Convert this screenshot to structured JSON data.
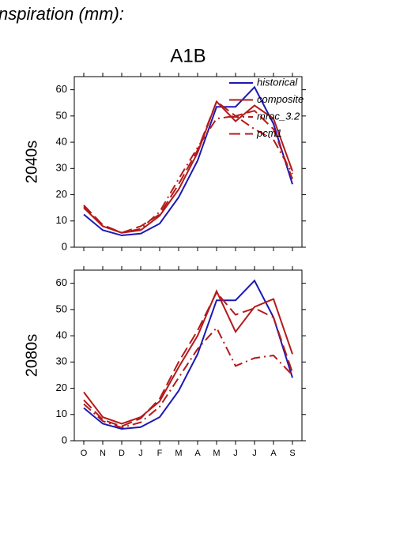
{
  "chart_data": {
    "type": "line",
    "title": "nspiration (mm):",
    "subtitle": "A1B",
    "categories": [
      "O",
      "N",
      "D",
      "J",
      "F",
      "M",
      "A",
      "M",
      "J",
      "J",
      "A",
      "S"
    ],
    "ylim": [
      0,
      65
    ],
    "yticks": [
      0,
      10,
      20,
      30,
      40,
      50,
      60
    ],
    "panels": [
      {
        "ylabel": "2040s"
      },
      {
        "ylabel": "2080s"
      }
    ],
    "legend": "upper right",
    "series": [
      {
        "name": "historical",
        "color": "#1a1ab4",
        "style": "solid",
        "values": [
          [
            12.5,
            6.5,
            4.5,
            5.2,
            9,
            19,
            33,
            53.5,
            53.5,
            61,
            47,
            24
          ],
          [
            12.5,
            6.5,
            4.5,
            5.2,
            9,
            19,
            33,
            53.5,
            53.5,
            61,
            47,
            24
          ]
        ]
      },
      {
        "name": "composite",
        "color": "#b41a1a",
        "style": "solid",
        "values": [
          [
            15,
            8,
            5.5,
            6.5,
            12,
            22,
            36,
            55.5,
            48,
            54,
            49,
            29
          ],
          [
            18.5,
            9,
            6.5,
            9,
            15,
            28,
            40,
            57,
            41.5,
            51,
            54,
            33
          ]
        ]
      },
      {
        "name": "mroc_3.2",
        "color": "#b41a1a",
        "style": "dashdot",
        "values": [
          [
            15.5,
            8,
            5.5,
            7,
            13.5,
            26,
            38,
            49,
            50,
            45,
            41,
            28
          ],
          [
            14,
            7.5,
            5,
            7,
            13,
            24,
            35,
            43,
            28.5,
            31.5,
            32.5,
            25
          ]
        ]
      },
      {
        "name": "pcm1",
        "color": "#b41a1a",
        "style": "dash",
        "values": [
          [
            16,
            8.5,
            5.5,
            8,
            12.5,
            24,
            37,
            55.5,
            50,
            52,
            45,
            26
          ],
          [
            15.5,
            8,
            5.5,
            8.5,
            16,
            30,
            42,
            56.5,
            48,
            50.5,
            47,
            26
          ]
        ]
      }
    ]
  }
}
